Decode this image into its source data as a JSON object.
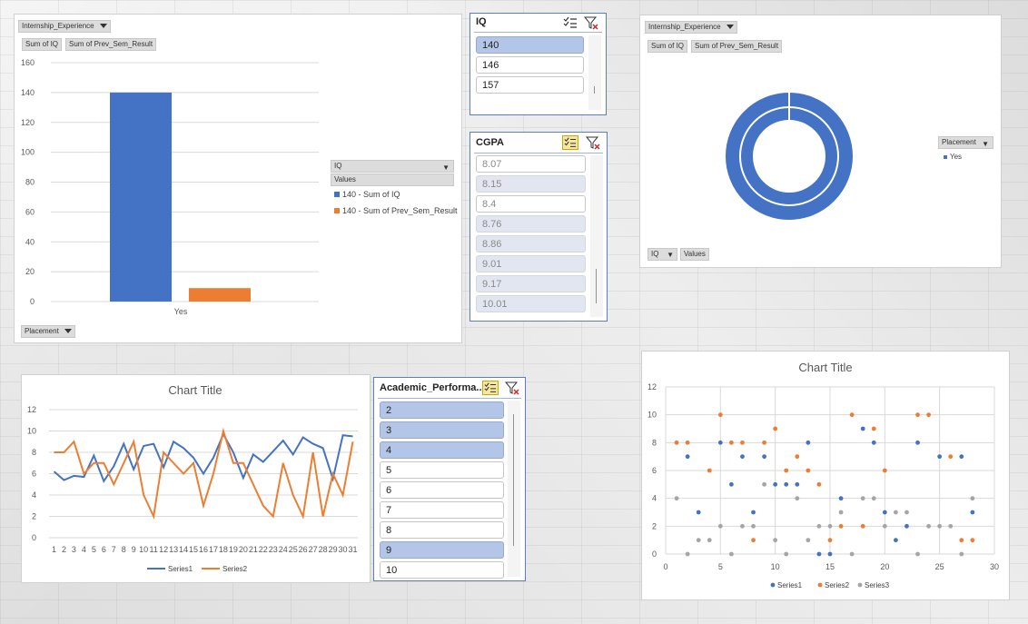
{
  "colors": {
    "blue": "#4472c4",
    "orange": "#ed7d31",
    "gray": "#a5a5a5",
    "slicer_selected": "#b4c6e7"
  },
  "pivot_chart_1": {
    "filter_button": "Internship_Experience",
    "value_buttons": [
      "Sum of IQ",
      "Sum of Prev_Sem_Result"
    ],
    "axis_button": "Placement",
    "legend_header": "IQ",
    "legend_sub": "Values",
    "legend_items": [
      "140 - Sum of IQ",
      "140 - Sum of Prev_Sem_Result"
    ]
  },
  "pivot_chart_2": {
    "filter_button": "Internship_Experience",
    "value_buttons": [
      "Sum of IQ",
      "Sum of Prev_Sem_Result"
    ],
    "legend_header": "Placement",
    "legend_items": [
      "Yes"
    ],
    "bottom_buttons": [
      "IQ",
      "Values"
    ]
  },
  "slicer_iq": {
    "title": "IQ",
    "items": [
      "140",
      "146",
      "157"
    ]
  },
  "slicer_cgpa": {
    "title": "CGPA",
    "items": [
      "8.07",
      "8.15",
      "8.4",
      "8.76",
      "8.86",
      "9.01",
      "9.17",
      "10.01"
    ]
  },
  "slicer_academic": {
    "title": "Academic_Performa...",
    "items": [
      "2",
      "3",
      "4",
      "5",
      "6",
      "7",
      "8",
      "9",
      "10"
    ]
  },
  "line_chart": {
    "title": "Chart Title"
  },
  "scatter_chart": {
    "title": "Chart Title"
  },
  "chart_data": [
    {
      "type": "bar",
      "categories": [
        "Yes"
      ],
      "series": [
        {
          "name": "140 - Sum of IQ",
          "values": [
            140
          ]
        },
        {
          "name": "140 - Sum of Prev_Sem_Result",
          "values": [
            9
          ]
        }
      ],
      "ylim": [
        0,
        160
      ],
      "yticks": [
        0,
        20,
        40,
        60,
        80,
        100,
        120,
        140,
        160
      ]
    },
    {
      "type": "pie",
      "labels": [
        "Yes"
      ],
      "values": [
        1
      ]
    },
    {
      "type": "line",
      "title": "Chart Title",
      "x": [
        1,
        2,
        3,
        4,
        5,
        6,
        7,
        8,
        9,
        10,
        11,
        12,
        13,
        14,
        15,
        16,
        17,
        18,
        19,
        20,
        21,
        22,
        23,
        24,
        25,
        26,
        27,
        28,
        29,
        30,
        31
      ],
      "series": [
        {
          "name": "Series1",
          "values": [
            6.2,
            5.4,
            5.8,
            5.7,
            7.7,
            5.3,
            6.7,
            8.8,
            6.4,
            8.6,
            8.8,
            6.6,
            9.0,
            8.4,
            7.5,
            6.0,
            7.5,
            9.7,
            8.0,
            5.6,
            7.8,
            7.1,
            8.1,
            9.1,
            7.8,
            9.4,
            8.8,
            8.4,
            5.5,
            9.6,
            9.5
          ]
        },
        {
          "name": "Series2",
          "values": [
            8.0,
            8.0,
            9.0,
            6.0,
            7.0,
            7.0,
            5.0,
            7.0,
            9.0,
            4.0,
            2.0,
            8.0,
            7.0,
            6.0,
            7.0,
            3.0,
            6.0,
            10.0,
            7.0,
            7.0,
            5.0,
            3.0,
            2.0,
            7.0,
            4.0,
            2.0,
            8.0,
            2.0,
            6.0,
            4.0,
            9.0
          ]
        }
      ],
      "ylim": [
        0,
        12
      ],
      "yticks": [
        0,
        2,
        4,
        6,
        8,
        10,
        12
      ]
    },
    {
      "type": "scatter",
      "title": "Chart Title",
      "xlim": [
        0,
        30
      ],
      "ylim": [
        0,
        12
      ],
      "xticks": [
        0,
        5,
        10,
        15,
        20,
        25,
        30
      ],
      "yticks": [
        0,
        2,
        4,
        6,
        8,
        10,
        12
      ],
      "series": [
        {
          "name": "Series1",
          "points": [
            [
              2,
              7
            ],
            [
              3,
              3
            ],
            [
              5,
              8
            ],
            [
              6,
              5
            ],
            [
              7,
              7
            ],
            [
              8,
              3
            ],
            [
              9,
              7
            ],
            [
              10,
              5
            ],
            [
              11,
              5
            ],
            [
              12,
              5
            ],
            [
              13,
              8
            ],
            [
              14,
              0
            ],
            [
              15,
              0
            ],
            [
              16,
              4
            ],
            [
              18,
              9
            ],
            [
              19,
              8
            ],
            [
              20,
              3
            ],
            [
              21,
              1
            ],
            [
              22,
              2
            ],
            [
              23,
              8
            ],
            [
              25,
              7
            ],
            [
              27,
              7
            ],
            [
              28,
              3
            ]
          ]
        },
        {
          "name": "Series2",
          "points": [
            [
              1,
              8
            ],
            [
              2,
              8
            ],
            [
              4,
              6
            ],
            [
              5,
              10
            ],
            [
              6,
              8
            ],
            [
              7,
              8
            ],
            [
              8,
              1
            ],
            [
              9,
              8
            ],
            [
              10,
              9
            ],
            [
              11,
              6
            ],
            [
              12,
              7
            ],
            [
              13,
              6
            ],
            [
              14,
              5
            ],
            [
              15,
              1
            ],
            [
              16,
              2
            ],
            [
              17,
              10
            ],
            [
              18,
              2
            ],
            [
              19,
              9
            ],
            [
              20,
              6
            ],
            [
              23,
              10
            ],
            [
              24,
              10
            ],
            [
              26,
              7
            ],
            [
              27,
              1
            ],
            [
              28,
              1
            ]
          ]
        },
        {
          "name": "Series3",
          "points": [
            [
              1,
              4
            ],
            [
              2,
              0
            ],
            [
              3,
              1
            ],
            [
              4,
              1
            ],
            [
              5,
              2
            ],
            [
              6,
              0
            ],
            [
              7,
              2
            ],
            [
              8,
              2
            ],
            [
              9,
              5
            ],
            [
              10,
              1
            ],
            [
              11,
              0
            ],
            [
              12,
              4
            ],
            [
              13,
              1
            ],
            [
              14,
              2
            ],
            [
              15,
              2
            ],
            [
              16,
              3
            ],
            [
              17,
              0
            ],
            [
              18,
              4
            ],
            [
              19,
              4
            ],
            [
              20,
              2
            ],
            [
              21,
              3
            ],
            [
              22,
              3
            ],
            [
              23,
              0
            ],
            [
              24,
              2
            ],
            [
              25,
              2
            ],
            [
              26,
              2
            ],
            [
              27,
              0
            ],
            [
              28,
              4
            ]
          ]
        }
      ]
    }
  ]
}
